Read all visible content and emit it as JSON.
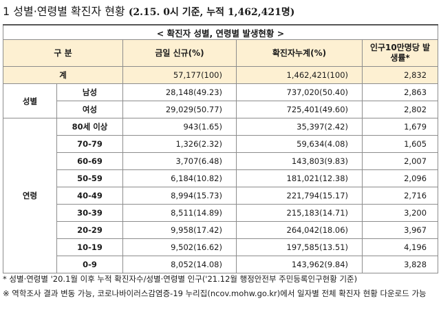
{
  "heading": {
    "prefix": "1 성별·연령별 확진자 현황 ",
    "date_note": "(2.15. 0시 기준, 누적 1,462,421명)"
  },
  "table": {
    "caption": "< 확진자 성별, 연령별 발생현황 >",
    "headers": [
      "구 분",
      "금일 신규(%)",
      "확진자누계(%)",
      "인구10만명당 발생률*"
    ],
    "total": {
      "label": "계",
      "new": "57,177(100)",
      "cumulative": "1,462,421(100)",
      "rate": "2,832"
    },
    "gender_group": "성별",
    "gender_rows": [
      {
        "label": "남성",
        "new": "28,148(49.23)",
        "cumulative": "737,020(50.40)",
        "rate": "2,863"
      },
      {
        "label": "여성",
        "new": "29,029(50.77)",
        "cumulative": "725,401(49.60)",
        "rate": "2,802"
      }
    ],
    "age_group": "연령",
    "age_rows": [
      {
        "label": "80세 이상",
        "new": "943(1.65)",
        "cumulative": "35,397(2.42)",
        "rate": "1,679"
      },
      {
        "label": "70-79",
        "new": "1,326(2.32)",
        "cumulative": "59,634(4.08)",
        "rate": "1,605"
      },
      {
        "label": "60-69",
        "new": "3,707(6.48)",
        "cumulative": "143,803(9.83)",
        "rate": "2,007"
      },
      {
        "label": "50-59",
        "new": "6,184(10.82)",
        "cumulative": "181,021(12.38)",
        "rate": "2,096"
      },
      {
        "label": "40-49",
        "new": "8,994(15.73)",
        "cumulative": "221,794(15.17)",
        "rate": "2,716"
      },
      {
        "label": "30-39",
        "new": "8,511(14.89)",
        "cumulative": "215,183(14.71)",
        "rate": "3,200"
      },
      {
        "label": "20-29",
        "new": "9,958(17.42)",
        "cumulative": "264,042(18.06)",
        "rate": "3,967"
      },
      {
        "label": "10-19",
        "new": "9,502(16.62)",
        "cumulative": "197,585(13.51)",
        "rate": "4,196"
      },
      {
        "label": "0-9",
        "new": "8,052(14.08)",
        "cumulative": "143,962(9.84)",
        "rate": "3,828"
      }
    ]
  },
  "footnotes": [
    "* 성별·연령별 '20.1월 이후 누적 확진자수/성별·연령별 인구('21.12월 행정안전부 주민등록인구현황 기준)",
    "※ 역학조사 결과 변동 가능, 코로나바이러스감염증-19 누리집(ncov.mohw.go.kr)에서 일자별 전체 확진자 현황 다운로드 가능"
  ]
}
